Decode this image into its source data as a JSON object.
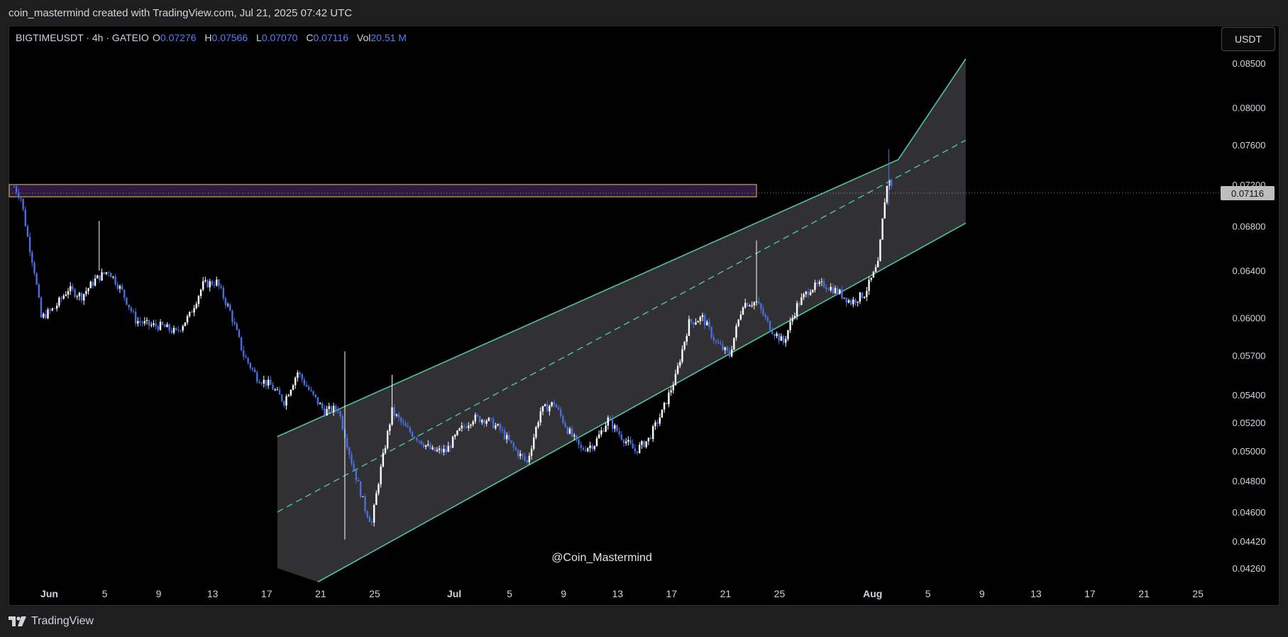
{
  "header": {
    "attribution": "coin_mastermind created with TradingView.com, Jul 21, 2025 07:42 UTC"
  },
  "legend": {
    "symbol_line": "BIGTIMEUSDT · 4h · GATEIO",
    "o_label": "O",
    "o_value": "0.07276",
    "h_label": "H",
    "h_value": "0.07566",
    "l_label": "L",
    "l_value": "0.07070",
    "c_label": "C",
    "c_value": "0.07116",
    "vol_label": "Vol",
    "vol_value": "20.51 M"
  },
  "currency_button": "USDT",
  "watermark": "@Coin_Mastermind",
  "footer": {
    "brand": "TradingView"
  },
  "colors": {
    "up": "#ffffff",
    "down": "#4a6ee0",
    "channel": "#4fc3a1",
    "zone": "#f2c14e",
    "value_color": "#5b7cfa"
  },
  "chart_data": {
    "type": "candlestick",
    "symbol": "BIGTIMEUSDT",
    "timeframe": "4h",
    "exchange": "GATEIO",
    "y_scale": "log",
    "ylim": [
      0.0418,
      0.0865
    ],
    "y_ticks": [
      "0.08500",
      "0.08000",
      "0.07600",
      "0.07200",
      "0.06800",
      "0.06400",
      "0.06000",
      "0.05700",
      "0.05400",
      "0.05200",
      "0.05000",
      "0.04800",
      "0.04600",
      "0.04420",
      "0.04260"
    ],
    "x_ticks": [
      "Jun",
      "5",
      "9",
      "13",
      "17",
      "21",
      "25",
      "Jul",
      "5",
      "9",
      "13",
      "17",
      "21",
      "25",
      "Aug",
      "5",
      "9",
      "13",
      "17",
      "21",
      "25"
    ],
    "last_price": "0.07116",
    "close_path_day_price": [
      [
        -3,
        0.0718
      ],
      [
        -2.5,
        0.0707
      ],
      [
        -2,
        0.067
      ],
      [
        -1.5,
        0.064
      ],
      [
        -1,
        0.06
      ],
      [
        0,
        0.0608
      ],
      [
        1,
        0.0624
      ],
      [
        2,
        0.0618
      ],
      [
        3,
        0.0632
      ],
      [
        4,
        0.064
      ],
      [
        5,
        0.0622
      ],
      [
        6,
        0.0598
      ],
      [
        7,
        0.0594
      ],
      [
        8,
        0.0593
      ],
      [
        9,
        0.0588
      ],
      [
        10,
        0.0602
      ],
      [
        11,
        0.0628
      ],
      [
        12,
        0.063
      ],
      [
        13,
        0.0605
      ],
      [
        14,
        0.057
      ],
      [
        15,
        0.0553
      ],
      [
        16,
        0.0547
      ],
      [
        17,
        0.0535
      ],
      [
        18,
        0.0557
      ],
      [
        19,
        0.0541
      ],
      [
        20,
        0.0528
      ],
      [
        21,
        0.053
      ],
      [
        22,
        0.0493
      ],
      [
        23,
        0.0462
      ],
      [
        23.5,
        0.0453
      ],
      [
        24,
        0.048
      ],
      [
        25,
        0.0528
      ],
      [
        26,
        0.0516
      ],
      [
        27,
        0.0508
      ],
      [
        28,
        0.05
      ],
      [
        29,
        0.05
      ],
      [
        30,
        0.0514
      ],
      [
        31,
        0.0523
      ],
      [
        32,
        0.0522
      ],
      [
        33,
        0.0515
      ],
      [
        34,
        0.0502
      ],
      [
        35,
        0.0492
      ],
      [
        36,
        0.0528
      ],
      [
        37,
        0.0534
      ],
      [
        38,
        0.0515
      ],
      [
        39,
        0.0501
      ],
      [
        40,
        0.0505
      ],
      [
        41,
        0.0522
      ],
      [
        42,
        0.051
      ],
      [
        43,
        0.05
      ],
      [
        44,
        0.0508
      ],
      [
        45,
        0.0527
      ],
      [
        46,
        0.0553
      ],
      [
        47,
        0.0596
      ],
      [
        48,
        0.06
      ],
      [
        49,
        0.058
      ],
      [
        50,
        0.057
      ],
      [
        51,
        0.0612
      ],
      [
        52,
        0.0613
      ],
      [
        53,
        0.0592
      ],
      [
        54,
        0.058
      ],
      [
        55,
        0.061
      ],
      [
        56,
        0.0625
      ],
      [
        57,
        0.0628
      ],
      [
        58,
        0.0622
      ],
      [
        59,
        0.0613
      ],
      [
        60,
        0.062
      ],
      [
        61,
        0.0645
      ],
      [
        61.5,
        0.0705
      ],
      [
        61.8,
        0.0728
      ],
      [
        62.1,
        0.0712
      ]
    ],
    "channel": {
      "upper": [
        [
          16.5,
          0.051
        ],
        [
          62.5,
          0.0745
        ],
        [
          67.5,
          0.0855
        ]
      ],
      "lower": [
        [
          19.5,
          0.0418
        ],
        [
          67.5,
          0.0683
        ]
      ],
      "mid": [
        [
          16.5,
          0.046
        ],
        [
          67.5,
          0.0765
        ]
      ]
    },
    "resistance_zone": {
      "low": 0.0708,
      "high": 0.072,
      "end_day": 52
    },
    "day_axis": {
      "jun1_day": 0,
      "jul_day": 30,
      "aug_day": 61
    }
  }
}
